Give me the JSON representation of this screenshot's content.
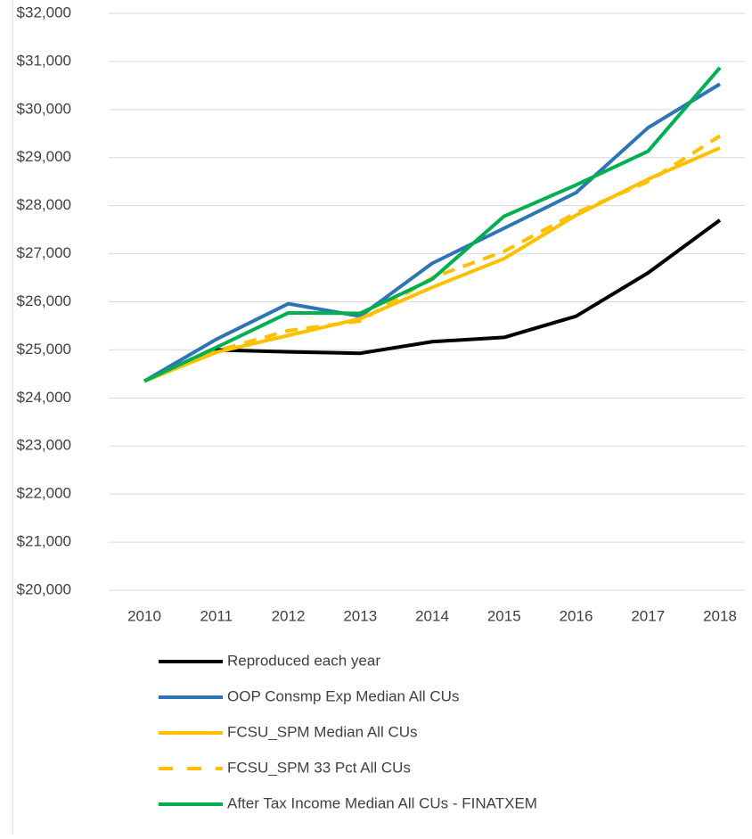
{
  "chart_data": {
    "type": "line",
    "categories": [
      "2010",
      "2011",
      "2012",
      "2013",
      "2014",
      "2015",
      "2016",
      "2017",
      "2018"
    ],
    "series": [
      {
        "name": "Reproduced each year",
        "color": "#000000",
        "values": [
          24350,
          25000,
          24960,
          24930,
          25170,
          25260,
          25700,
          26600,
          27700
        ]
      },
      {
        "name": "OOP Consmp Exp Median All CUs",
        "color": "#2e75b6",
        "values": [
          24350,
          25220,
          25960,
          25700,
          26800,
          27530,
          28270,
          29620,
          30530
        ]
      },
      {
        "name": "FCSU_SPM Median All CUs",
        "color": "#ffc000",
        "values": [
          24350,
          24950,
          25300,
          25650,
          26300,
          26900,
          27800,
          28550,
          29200
        ]
      },
      {
        "name": "FCSU_SPM 33 Pct All CUs",
        "color": "#ffc000",
        "dashed": true,
        "values": [
          24350,
          24980,
          25400,
          25600,
          26500,
          27050,
          27850,
          28500,
          29450
        ]
      },
      {
        "name": "After Tax Income Median All CUs - FINATXEM",
        "color": "#00b050",
        "values": [
          24350,
          25050,
          25770,
          25760,
          26470,
          27780,
          28430,
          29130,
          30870
        ]
      }
    ],
    "ylim": [
      20000,
      32000
    ],
    "yticks": [
      {
        "value": 20000,
        "label": "$20,000"
      },
      {
        "value": 21000,
        "label": "$21,000"
      },
      {
        "value": 22000,
        "label": "$22,000"
      },
      {
        "value": 23000,
        "label": "$23,000"
      },
      {
        "value": 24000,
        "label": "$24,000"
      },
      {
        "value": 25000,
        "label": "$25,000"
      },
      {
        "value": 26000,
        "label": "$26,000"
      },
      {
        "value": 27000,
        "label": "$27,000"
      },
      {
        "value": 28000,
        "label": "$28,000"
      },
      {
        "value": 29000,
        "label": "$29,000"
      },
      {
        "value": 30000,
        "label": "$30,000"
      },
      {
        "value": 31000,
        "label": "$31,000"
      },
      {
        "value": 32000,
        "label": "$32,000"
      }
    ],
    "grid": true,
    "legend": "bottom"
  }
}
